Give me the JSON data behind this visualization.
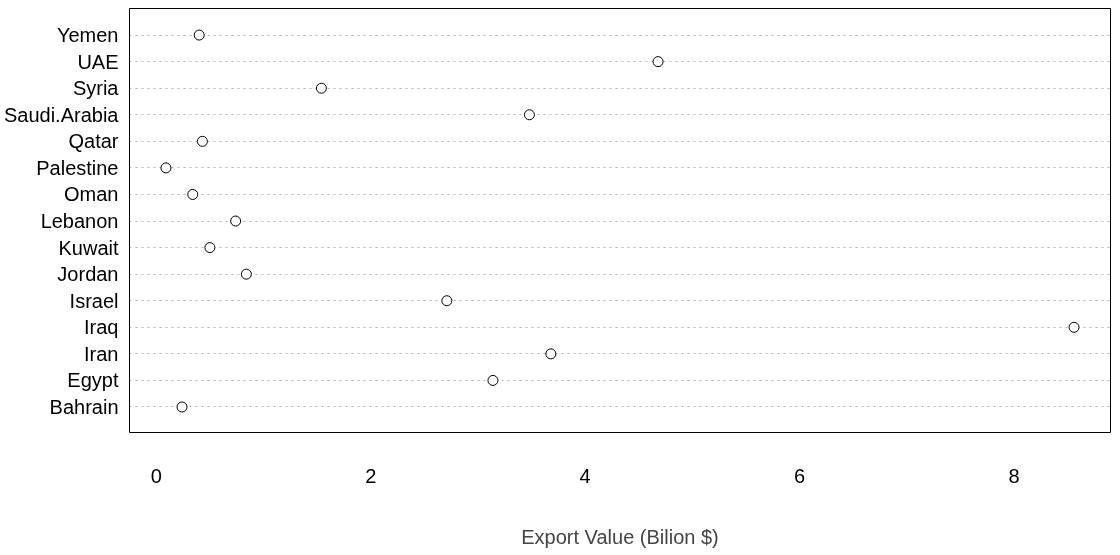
{
  "chart_data": {
    "type": "scatter",
    "orientation": "horizontal",
    "xlabel": "Export Value (Bilion $)",
    "categories": [
      "Yemen",
      "UAE",
      "Syria",
      "Saudi.Arabia",
      "Qatar",
      "Palestine",
      "Oman",
      "Lebanon",
      "Kuwait",
      "Jordan",
      "Israel",
      "Iraq",
      "Iran",
      "Egypt",
      "Bahrain"
    ],
    "values": [
      0.4,
      4.68,
      1.54,
      3.48,
      0.43,
      0.09,
      0.34,
      0.74,
      0.5,
      0.84,
      2.71,
      8.56,
      3.68,
      3.14,
      0.24
    ],
    "color": "#000000",
    "marker": "circle",
    "xlim": [
      -0.25,
      8.9
    ],
    "xticks": [
      0,
      2,
      4,
      6,
      8
    ],
    "grid": "y",
    "line_style": "dotted"
  }
}
